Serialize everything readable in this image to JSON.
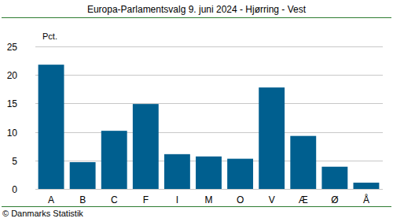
{
  "chart_data": {
    "type": "bar",
    "title": "Europa-Parlamentsvalg 9. juni 2024 - Hjørring - Vest",
    "y_label": "Pct.",
    "source": "© Danmarks Statistik",
    "categories": [
      "A",
      "B",
      "C",
      "F",
      "I",
      "M",
      "O",
      "V",
      "Æ",
      "Ø",
      "Å"
    ],
    "values": [
      21.8,
      4.7,
      10.2,
      14.9,
      6.1,
      5.7,
      5.3,
      17.8,
      9.3,
      3.9,
      1.1
    ],
    "color": "#005f8f",
    "ylim": [
      0,
      25
    ],
    "yticks": [
      0,
      5,
      10,
      15,
      20,
      25
    ],
    "grid": true
  }
}
